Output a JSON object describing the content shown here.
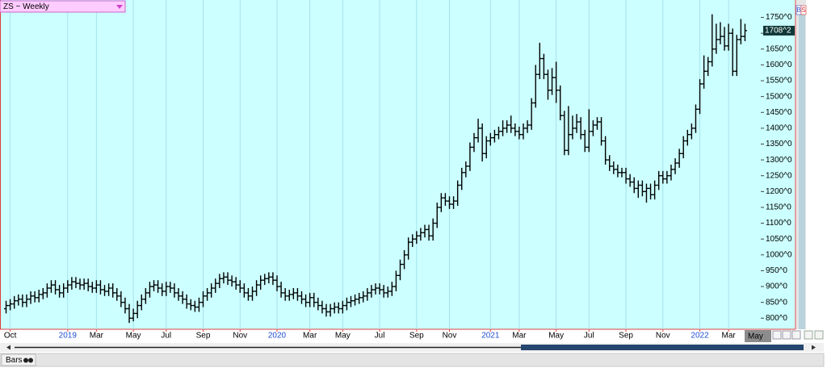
{
  "header": {
    "symbol_selector": "ZS ~ Weekly",
    "buttons": [
      "B",
      "S"
    ]
  },
  "chart_data": {
    "type": "ohlc",
    "categories": [
      null,
      "Oct",
      null,
      null,
      null,
      null,
      null,
      null,
      null,
      null,
      null,
      null,
      null,
      null,
      null,
      "2019",
      null,
      null,
      null,
      null,
      null,
      null,
      "Mar",
      null,
      null,
      null,
      null,
      null,
      null,
      null,
      null,
      "May",
      null,
      null,
      null,
      null,
      null,
      null,
      null,
      "Jul",
      null,
      null,
      null,
      null,
      null,
      null,
      null,
      null,
      "Sep",
      null,
      null,
      null,
      null,
      null,
      null,
      null,
      null,
      "Nov",
      null,
      null,
      null,
      null,
      null,
      null,
      null,
      null,
      "2020",
      null,
      null,
      null,
      null,
      null,
      null,
      null,
      "Mar",
      null,
      null,
      null,
      null,
      null,
      null,
      null,
      "May",
      null,
      null,
      null,
      null,
      null,
      null,
      null,
      null,
      "Jul",
      null,
      null,
      null,
      null,
      null,
      null,
      null,
      null,
      "Sep",
      null,
      null,
      null,
      null,
      null,
      null,
      null,
      "Nov",
      null,
      null,
      null,
      null,
      null,
      null,
      null,
      null,
      null,
      "2021",
      null,
      null,
      null,
      null,
      null,
      null,
      "Mar",
      null,
      null,
      null,
      null,
      null,
      null,
      null,
      null,
      "May",
      null,
      null,
      null,
      null,
      null,
      null,
      null,
      "Jul",
      null,
      null,
      null,
      null,
      null,
      null,
      null,
      null,
      "Sep",
      null,
      null,
      null,
      null,
      null,
      null,
      null,
      null,
      "Nov",
      null,
      null,
      null,
      null,
      null,
      null,
      null,
      null,
      "2022",
      null,
      null,
      null,
      null,
      null,
      null,
      "Mar",
      null,
      null,
      null,
      null
    ],
    "x_axis_end_label": "May",
    "open": [
      830,
      840,
      845,
      855,
      860,
      850,
      860,
      870,
      865,
      875,
      880,
      895,
      905,
      890,
      880,
      895,
      905,
      915,
      910,
      905,
      910,
      900,
      895,
      905,
      890,
      885,
      895,
      880,
      870,
      850,
      830,
      800,
      815,
      840,
      860,
      880,
      900,
      905,
      895,
      885,
      900,
      895,
      880,
      870,
      860,
      845,
      840,
      835,
      850,
      870,
      880,
      895,
      910,
      925,
      930,
      920,
      915,
      905,
      895,
      880,
      870,
      885,
      905,
      920,
      925,
      930,
      920,
      900,
      880,
      870,
      875,
      880,
      870,
      860,
      850,
      865,
      850,
      840,
      830,
      820,
      830,
      835,
      830,
      840,
      850,
      855,
      860,
      865,
      870,
      880,
      890,
      895,
      890,
      880,
      885,
      900,
      935,
      970,
      1000,
      1040,
      1050,
      1060,
      1070,
      1080,
      1060,
      1100,
      1150,
      1180,
      1170,
      1160,
      1170,
      1220,
      1260,
      1280,
      1340,
      1370,
      1400,
      1320,
      1360,
      1370,
      1380,
      1390,
      1400,
      1410,
      1400,
      1390,
      1380,
      1400,
      1410,
      1480,
      1570,
      1620,
      1570,
      1520,
      1560,
      1520,
      1440,
      1330,
      1380,
      1400,
      1420,
      1380,
      1340,
      1390,
      1410,
      1420,
      1360,
      1300,
      1280,
      1270,
      1260,
      1260,
      1240,
      1230,
      1210,
      1220,
      1200,
      1210,
      1190,
      1220,
      1250,
      1240,
      1250,
      1270,
      1290,
      1320,
      1360,
      1380,
      1400,
      1460,
      1540,
      1580,
      1610,
      1650,
      1680,
      1690,
      1660,
      1700,
      1580,
      1680,
      1690
    ],
    "high": [
      855,
      860,
      870,
      875,
      875,
      875,
      885,
      885,
      890,
      895,
      910,
      920,
      920,
      905,
      910,
      920,
      930,
      930,
      925,
      925,
      925,
      915,
      920,
      920,
      905,
      910,
      910,
      895,
      885,
      865,
      845,
      830,
      855,
      875,
      895,
      915,
      920,
      920,
      910,
      915,
      915,
      910,
      895,
      885,
      875,
      860,
      855,
      865,
      885,
      895,
      910,
      925,
      940,
      945,
      945,
      935,
      930,
      920,
      910,
      895,
      900,
      920,
      935,
      940,
      945,
      945,
      935,
      915,
      895,
      890,
      895,
      895,
      885,
      875,
      880,
      880,
      865,
      855,
      845,
      845,
      850,
      850,
      855,
      865,
      870,
      875,
      880,
      885,
      895,
      905,
      910,
      910,
      905,
      900,
      915,
      950,
      985,
      1015,
      1055,
      1065,
      1075,
      1085,
      1095,
      1095,
      1115,
      1165,
      1195,
      1195,
      1185,
      1185,
      1235,
      1275,
      1295,
      1355,
      1385,
      1430,
      1415,
      1375,
      1385,
      1395,
      1405,
      1425,
      1425,
      1440,
      1415,
      1405,
      1415,
      1425,
      1495,
      1600,
      1670,
      1635,
      1585,
      1590,
      1610,
      1535,
      1455,
      1470,
      1440,
      1445,
      1435,
      1395,
      1460,
      1425,
      1435,
      1435,
      1375,
      1315,
      1295,
      1285,
      1275,
      1275,
      1255,
      1245,
      1235,
      1235,
      1225,
      1225,
      1235,
      1265,
      1265,
      1265,
      1285,
      1305,
      1335,
      1375,
      1395,
      1415,
      1475,
      1555,
      1630,
      1625,
      1760,
      1730,
      1735,
      1720,
      1730,
      1715,
      1695,
      1745,
      1730
    ],
    "low": [
      815,
      825,
      830,
      840,
      835,
      835,
      845,
      850,
      850,
      860,
      865,
      880,
      875,
      865,
      865,
      880,
      890,
      895,
      890,
      890,
      885,
      880,
      880,
      875,
      870,
      870,
      865,
      855,
      835,
      815,
      785,
      790,
      800,
      825,
      845,
      865,
      885,
      880,
      870,
      870,
      880,
      865,
      855,
      845,
      830,
      825,
      820,
      820,
      835,
      855,
      865,
      880,
      895,
      910,
      905,
      900,
      890,
      880,
      865,
      855,
      855,
      870,
      890,
      905,
      910,
      905,
      885,
      865,
      855,
      855,
      860,
      855,
      845,
      835,
      835,
      835,
      825,
      815,
      805,
      805,
      815,
      815,
      815,
      825,
      835,
      840,
      845,
      850,
      855,
      865,
      875,
      875,
      865,
      865,
      870,
      885,
      920,
      955,
      985,
      1025,
      1035,
      1045,
      1055,
      1045,
      1045,
      1085,
      1135,
      1155,
      1145,
      1145,
      1155,
      1205,
      1245,
      1265,
      1325,
      1355,
      1295,
      1305,
      1345,
      1355,
      1365,
      1375,
      1385,
      1385,
      1375,
      1365,
      1365,
      1385,
      1395,
      1465,
      1555,
      1555,
      1490,
      1505,
      1480,
      1425,
      1315,
      1315,
      1365,
      1385,
      1365,
      1325,
      1325,
      1375,
      1395,
      1345,
      1285,
      1265,
      1255,
      1245,
      1245,
      1225,
      1215,
      1195,
      1180,
      1185,
      1165,
      1175,
      1175,
      1205,
      1225,
      1225,
      1235,
      1255,
      1275,
      1305,
      1345,
      1365,
      1385,
      1445,
      1525,
      1565,
      1595,
      1635,
      1665,
      1645,
      1645,
      1565,
      1565,
      1665,
      1675
    ],
    "close": [
      840,
      845,
      855,
      860,
      850,
      860,
      870,
      865,
      875,
      880,
      895,
      905,
      890,
      880,
      895,
      905,
      915,
      910,
      905,
      910,
      900,
      895,
      905,
      890,
      885,
      895,
      880,
      870,
      850,
      830,
      800,
      815,
      840,
      860,
      880,
      900,
      905,
      895,
      885,
      900,
      895,
      880,
      870,
      860,
      845,
      840,
      835,
      850,
      870,
      880,
      895,
      910,
      925,
      930,
      920,
      915,
      905,
      895,
      880,
      870,
      885,
      905,
      920,
      925,
      930,
      920,
      900,
      880,
      870,
      875,
      880,
      870,
      860,
      850,
      865,
      850,
      840,
      830,
      820,
      830,
      835,
      830,
      840,
      850,
      855,
      860,
      865,
      870,
      880,
      890,
      895,
      890,
      880,
      885,
      900,
      935,
      970,
      1000,
      1040,
      1050,
      1060,
      1070,
      1080,
      1060,
      1100,
      1150,
      1180,
      1170,
      1160,
      1170,
      1220,
      1260,
      1280,
      1340,
      1370,
      1400,
      1320,
      1360,
      1370,
      1380,
      1390,
      1400,
      1410,
      1400,
      1390,
      1380,
      1400,
      1410,
      1480,
      1570,
      1620,
      1570,
      1520,
      1560,
      1520,
      1440,
      1330,
      1380,
      1400,
      1420,
      1380,
      1340,
      1390,
      1410,
      1420,
      1360,
      1300,
      1280,
      1270,
      1260,
      1260,
      1240,
      1230,
      1210,
      1220,
      1200,
      1210,
      1190,
      1220,
      1250,
      1240,
      1250,
      1270,
      1290,
      1320,
      1360,
      1380,
      1400,
      1460,
      1540,
      1580,
      1610,
      1650,
      1680,
      1690,
      1660,
      1700,
      1580,
      1680,
      1690,
      1708.25
    ],
    "color": "#000000",
    "year_label_color": "#1f4fd6",
    "ylim": [
      765,
      1805
    ],
    "yticks": [
      {
        "value": 800,
        "label": "800^0"
      },
      {
        "value": 850,
        "label": "850^0"
      },
      {
        "value": 900,
        "label": "900^0"
      },
      {
        "value": 950,
        "label": "950^0"
      },
      {
        "value": 1000,
        "label": "1000^0"
      },
      {
        "value": 1050,
        "label": "1050^0"
      },
      {
        "value": 1100,
        "label": "1100^0"
      },
      {
        "value": 1150,
        "label": "1150^0"
      },
      {
        "value": 1200,
        "label": "1200^0"
      },
      {
        "value": 1250,
        "label": "1250^0"
      },
      {
        "value": 1300,
        "label": "1300^0"
      },
      {
        "value": 1350,
        "label": "1350^0"
      },
      {
        "value": 1400,
        "label": "1400^0"
      },
      {
        "value": 1450,
        "label": "1450^0"
      },
      {
        "value": 1500,
        "label": "1500^0"
      },
      {
        "value": 1550,
        "label": "1550^0"
      },
      {
        "value": 1600,
        "label": "1600^0"
      },
      {
        "value": 1650,
        "label": "1650^0"
      },
      {
        "value": 1700,
        "label": "1700^0"
      },
      {
        "value": 1750,
        "label": "1750^0"
      }
    ],
    "grid": "x",
    "last_price": {
      "value": 1708.25,
      "label": "1708^2"
    }
  },
  "footer": {
    "tab": "Bars"
  }
}
